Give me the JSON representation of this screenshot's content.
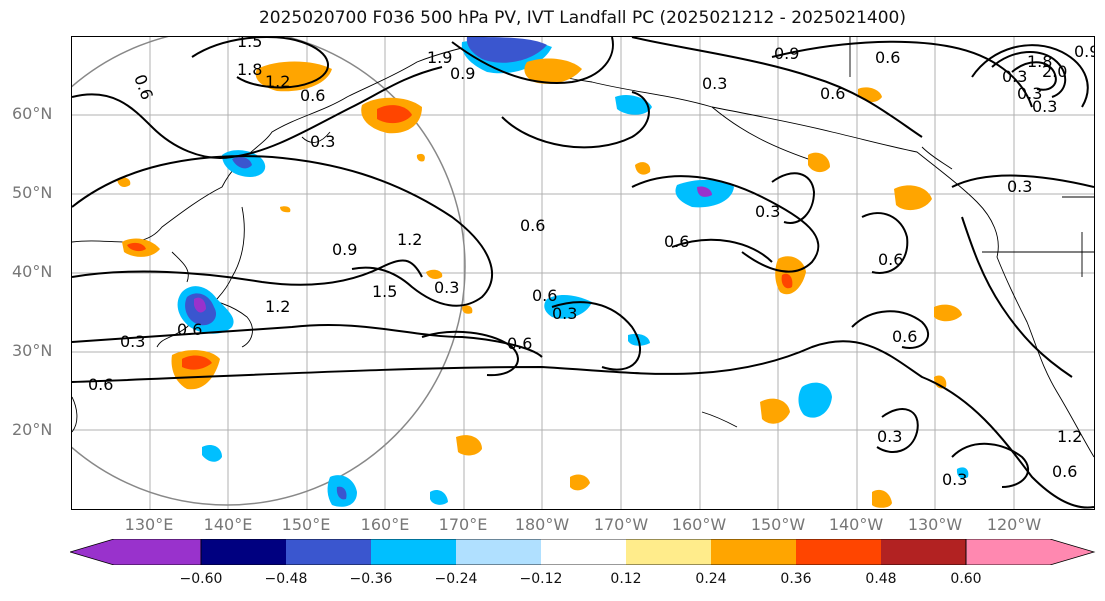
{
  "title": "2025020700 F036 500 hPa PV, IVT Landfall PC (2025021212 - 2025021400)",
  "lat_labels": [
    "60°N",
    "50°N",
    "40°N",
    "30°N",
    "20°N"
  ],
  "lon_labels": [
    "130°E",
    "140°E",
    "150°E",
    "160°E",
    "170°E",
    "180°W",
    "170°W",
    "160°W",
    "150°W",
    "140°W",
    "130°W",
    "120°W"
  ],
  "contour_labels": [
    "1.5",
    "1.8",
    "1.2",
    "0.6",
    "0.3",
    "0.6",
    "1.9",
    "0.9",
    "0.3",
    "0.9",
    "0.6",
    "0.6",
    "0.6",
    "1.2",
    "0.9",
    "1.2",
    "1.5",
    "0.3",
    "0.6",
    "0.6",
    "0.3",
    "0.6",
    "0.6",
    "0.3",
    "0.6",
    "0.3",
    "0.6",
    "0.6",
    "0.3",
    "0.3",
    "0.6",
    "1.2",
    "0.3",
    "0.3",
    "0.3",
    "0.3",
    "0.9",
    "1.8",
    "2.0"
  ],
  "colorbar": {
    "ticks": [
      "−0.60",
      "−0.48",
      "−0.36",
      "−0.24",
      "−0.12",
      "0.12",
      "0.24",
      "0.36",
      "0.48",
      "0.60"
    ],
    "colors": [
      "#9932CC",
      "#000080",
      "#3A56CF",
      "#00BFFF",
      "#B0E0FF",
      "#FFFFFF",
      "#FFFFFF",
      "#FFEC8B",
      "#FFA500",
      "#FF4500",
      "#B22222",
      "#FF88B0"
    ]
  },
  "fill_colors": {
    "neg_strong": "#3A56CF",
    "neg_mid": "#00BFFF",
    "neg_weak": "#B0E0FF",
    "pos_weak": "#FFEC8B",
    "pos_mid": "#FFA500",
    "pos_strong": "#FF4500",
    "purple": "#9932CC"
  }
}
